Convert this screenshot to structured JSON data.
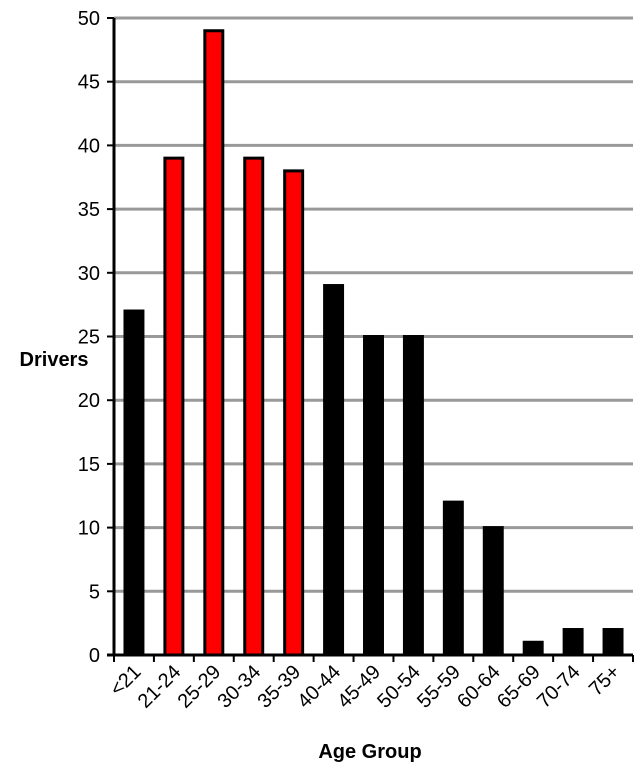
{
  "chart_data": {
    "type": "bar",
    "categories": [
      "<21",
      "21-24",
      "25-29",
      "30-34",
      "35-39",
      "40-44",
      "45-49",
      "50-54",
      "55-59",
      "60-64",
      "65-69",
      "70-74",
      "75+"
    ],
    "values": [
      27,
      39,
      49,
      39,
      38,
      29,
      25,
      25,
      12,
      10,
      1,
      2,
      2
    ],
    "highlighted": [
      false,
      true,
      true,
      true,
      true,
      false,
      false,
      false,
      false,
      false,
      false,
      false,
      false
    ],
    "colors": {
      "default_bar": "#000000",
      "highlight_bar": "#ff0000",
      "bar_outline": "#000000",
      "gridline": "#999999"
    },
    "title": "",
    "xlabel": "Age Group",
    "ylabel": "Drivers",
    "ylim": [
      0,
      50
    ],
    "yticks": [
      0,
      5,
      10,
      15,
      20,
      25,
      30,
      35,
      40,
      45,
      50
    ],
    "grid": true,
    "legend": "none"
  }
}
